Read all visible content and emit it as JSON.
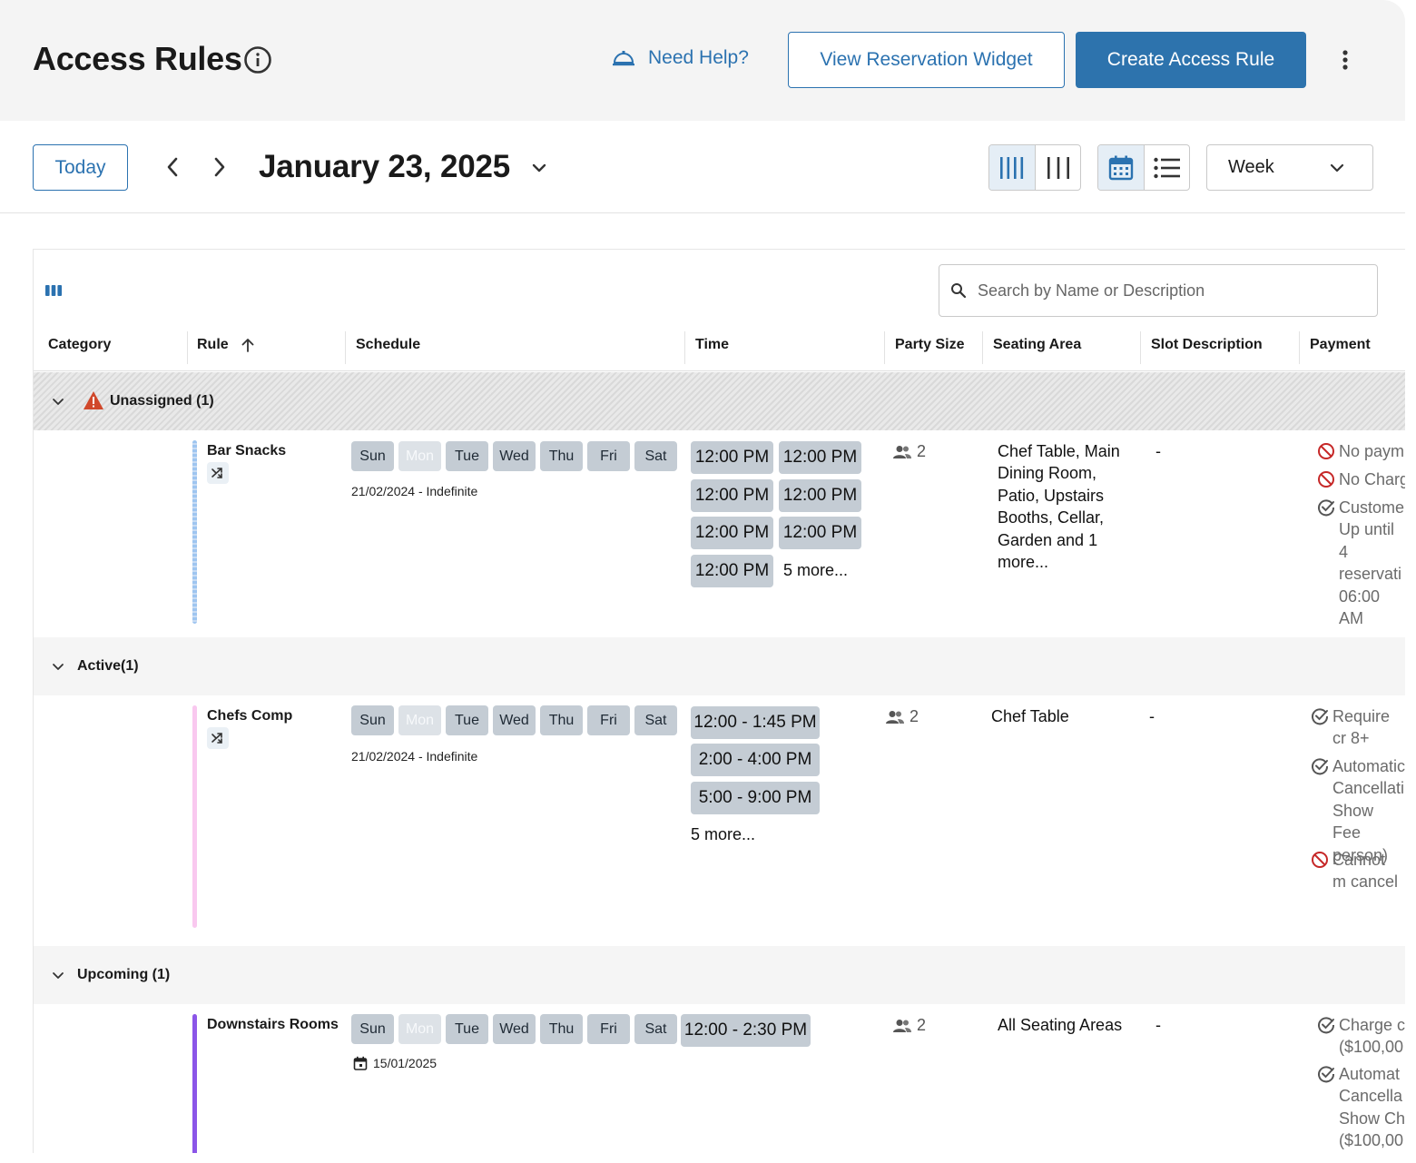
{
  "header": {
    "title": "Access Rules",
    "need_help": "Need Help?",
    "view_widget": "View Reservation Widget",
    "create_rule": "Create Access Rule"
  },
  "datebar": {
    "today": "Today",
    "date": "January 23, 2025",
    "view_mode": "Week"
  },
  "search": {
    "placeholder": "Search by Name or Description"
  },
  "columns": {
    "category": "Category",
    "rule": "Rule",
    "schedule": "Schedule",
    "time": "Time",
    "party_size": "Party Size",
    "seating_area": "Seating Area",
    "slot_description": "Slot Description",
    "payment": "Payment"
  },
  "days": [
    "Sun",
    "Mon",
    "Tue",
    "Wed",
    "Thu",
    "Fri",
    "Sat"
  ],
  "groups": [
    {
      "label": "Unassigned (1)",
      "rule": {
        "name": "Bar Snacks",
        "date_range": "21/02/2024 - Indefinite",
        "times": [
          "12:00 PM",
          "12:00 PM",
          "12:00 PM",
          "12:00 PM",
          "12:00 PM",
          "12:00 PM",
          "12:00 PM"
        ],
        "more": "5 more...",
        "party_size": "2",
        "seating": "Chef Table, Main Dining Room, Patio, Upstairs Booths, Cellar, Garden and 1 more...",
        "slot_description": "-",
        "payment": [
          "No paym",
          "No Charg",
          "Custome Up until 4 reservati 06:00 AM"
        ]
      }
    },
    {
      "label": "Active(1)",
      "rule": {
        "name": "Chefs Comp",
        "date_range": "21/02/2024 - Indefinite",
        "times": [
          "12:00 - 1:45 PM",
          "2:00 - 4:00 PM",
          "5:00 - 9:00 PM"
        ],
        "more": "5 more...",
        "party_size": "2",
        "seating": "Chef Table",
        "slot_description": "-",
        "payment": [
          "Require cr 8+",
          "Automatic Cancellati Show Fee person)",
          "Cannot m cancel"
        ]
      }
    },
    {
      "label": "Upcoming (1)",
      "rule": {
        "name": "Downstairs Rooms",
        "date_range": "15/01/2025",
        "times": [
          "12:00 - 2:30 PM"
        ],
        "party_size": "2",
        "seating": "All Seating Areas",
        "slot_description": "-",
        "payment": [
          "Charge c ($100,00",
          "Automat Cancella Show Ch ($100,00"
        ]
      }
    }
  ],
  "colors": {
    "accent": "#2d73ad",
    "bar_unassigned": "#9ec5f0",
    "bar_active": "#f9c8ef",
    "bar_upcoming": "#8b55e8",
    "warning": "#d0482b",
    "blocked": "#c62828"
  }
}
